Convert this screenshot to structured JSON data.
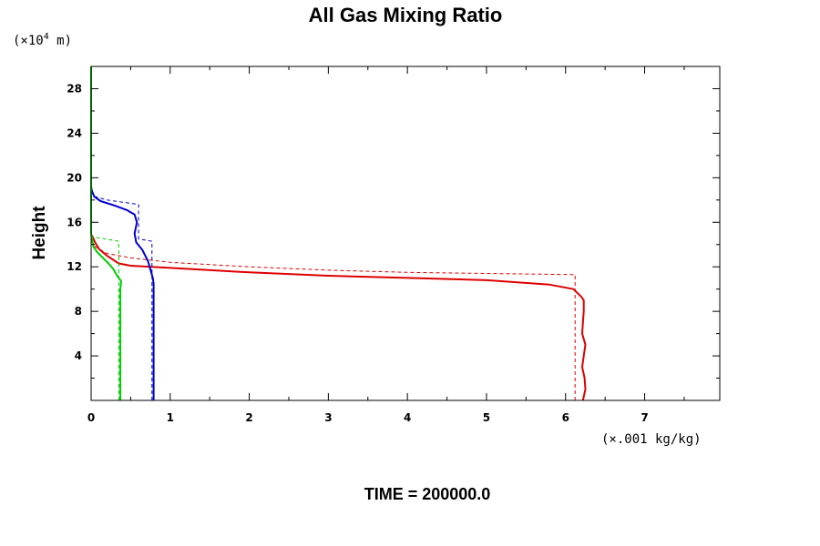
{
  "chart_data": {
    "type": "line",
    "title": "All Gas Mixing Ratio",
    "ylabel": "Height",
    "y_unit": {
      "prefix": "(×10",
      "exponent": "4",
      "suffix": " m)"
    },
    "x_unit": "(×.001 kg/kg)",
    "xlim": [
      0,
      7.95
    ],
    "ylim": [
      0,
      30
    ],
    "x_ticks": [
      0,
      1,
      2,
      3,
      4,
      5,
      6,
      7
    ],
    "x_tick_labels": [
      "0",
      "1",
      "2",
      "3",
      "4",
      "5",
      "6",
      "7"
    ],
    "y_ticks": [
      4,
      8,
      12,
      16,
      20,
      24,
      28
    ],
    "y_tick_labels": [
      "4",
      "8",
      "12",
      "16",
      "20",
      "24",
      "28"
    ],
    "grid": false,
    "legend": "none",
    "series": [
      {
        "color": "#dd0000",
        "dash": false,
        "points": [
          [
            6.22,
            0
          ],
          [
            6.25,
            1
          ],
          [
            6.24,
            2
          ],
          [
            6.21,
            3
          ],
          [
            6.23,
            4
          ],
          [
            6.25,
            5
          ],
          [
            6.21,
            6
          ],
          [
            6.22,
            7
          ],
          [
            6.23,
            8
          ],
          [
            6.23,
            9
          ],
          [
            6.2,
            9.3
          ],
          [
            6.1,
            10
          ],
          [
            5.8,
            10.4
          ],
          [
            5,
            10.8
          ],
          [
            4,
            11
          ],
          [
            3,
            11.2
          ],
          [
            2,
            11.5
          ],
          [
            1,
            11.9
          ],
          [
            0.5,
            12.1
          ],
          [
            0.35,
            12.3
          ],
          [
            0.2,
            13
          ],
          [
            0.1,
            13.6
          ],
          [
            0.05,
            14.2
          ],
          [
            0.02,
            14.7
          ],
          [
            0,
            14.9
          ]
        ]
      },
      {
        "color": "#dd0000",
        "dash": true,
        "points": [
          [
            6.12,
            0
          ],
          [
            6.12,
            11.3
          ],
          [
            5,
            11.4
          ],
          [
            4,
            11.5
          ],
          [
            3,
            11.7
          ],
          [
            2,
            12
          ],
          [
            1,
            12.4
          ],
          [
            0.5,
            12.8
          ],
          [
            0.2,
            13.2
          ],
          [
            0.05,
            13.8
          ],
          [
            0,
            14.4
          ]
        ]
      },
      {
        "color": "#0000cc",
        "dash": false,
        "points": [
          [
            0.79,
            0
          ],
          [
            0.79,
            10.5
          ],
          [
            0.78,
            11
          ],
          [
            0.72,
            12.5
          ],
          [
            0.65,
            13.5
          ],
          [
            0.57,
            14.2
          ],
          [
            0.55,
            15
          ],
          [
            0.58,
            16
          ],
          [
            0.55,
            16.7
          ],
          [
            0.45,
            17.1
          ],
          [
            0.3,
            17.5
          ],
          [
            0.12,
            17.9
          ],
          [
            0.04,
            18.3
          ],
          [
            0.01,
            18.8
          ],
          [
            0,
            19.2
          ]
        ]
      },
      {
        "color": "#0000cc",
        "dash": true,
        "points": [
          [
            0.77,
            0
          ],
          [
            0.77,
            14.3
          ],
          [
            0.6,
            14.5
          ],
          [
            0.6,
            17.6
          ],
          [
            0.4,
            17.8
          ],
          [
            0.2,
            18
          ],
          [
            0.05,
            18.3
          ],
          [
            0,
            19
          ]
        ]
      },
      {
        "color": "#00cc00",
        "dash": false,
        "points": [
          [
            0.37,
            0
          ],
          [
            0.37,
            10
          ],
          [
            0.38,
            10.7
          ],
          [
            0.33,
            11.2
          ],
          [
            0.28,
            11.8
          ],
          [
            0.22,
            12.3
          ],
          [
            0.15,
            12.8
          ],
          [
            0.08,
            13.3
          ],
          [
            0.03,
            13.8
          ],
          [
            0.01,
            14.5
          ],
          [
            0,
            15
          ]
        ]
      },
      {
        "color": "#00cc00",
        "dash": true,
        "points": [
          [
            0.35,
            0
          ],
          [
            0.35,
            14.3
          ],
          [
            0.1,
            14.6
          ],
          [
            0,
            14.7
          ]
        ]
      },
      {
        "color": "#00cc00",
        "dash": false,
        "points": [
          [
            0,
            15
          ],
          [
            0,
            30
          ]
        ]
      }
    ],
    "footer": "TIME = 200000.0"
  }
}
